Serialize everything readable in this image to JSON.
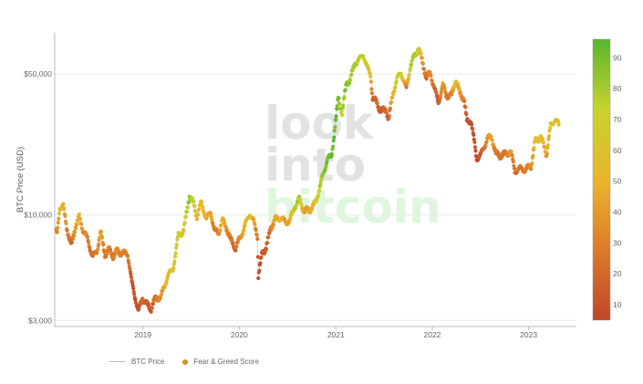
{
  "chart_data": {
    "type": "scatter",
    "ylabel": "BTC Price (USD)",
    "yscale": "log",
    "ylim": [
      2800,
      80000
    ],
    "xlim": [
      "2018-02-01",
      "2023-07-01"
    ],
    "y_ticks": [
      {
        "value": 3000,
        "label": "$3,000"
      },
      {
        "value": 10000,
        "label": "$10,000"
      },
      {
        "value": 50000,
        "label": "$50,000"
      }
    ],
    "x_ticks": [
      {
        "value": "2019-01-01",
        "label": "2019"
      },
      {
        "value": "2020-01-01",
        "label": "2020"
      },
      {
        "value": "2021-01-01",
        "label": "2021"
      },
      {
        "value": "2022-01-01",
        "label": "2022"
      },
      {
        "value": "2023-01-01",
        "label": "2023"
      }
    ],
    "colorbar": {
      "min": 5,
      "max": 96,
      "ticks": [
        10,
        20,
        30,
        40,
        50,
        60,
        70,
        80,
        90
      ],
      "colors": [
        "#c0462a",
        "#dc7a2a",
        "#e9b52b",
        "#c7d32d",
        "#58b52f"
      ]
    },
    "watermark": [
      "look",
      "into",
      "bitcoin"
    ],
    "legend": {
      "position": "bottom-left"
    },
    "series": [
      {
        "name": "BTC Price",
        "kind": "line",
        "color": "#bbbbbb"
      },
      {
        "name": "Fear & Greed Score",
        "kind": "markers",
        "color": "#d98d2b"
      }
    ],
    "points": [
      [
        "2018-02-01",
        8500,
        40
      ],
      [
        "2018-02-10",
        8000,
        30
      ],
      [
        "2018-02-20",
        11000,
        55
      ],
      [
        "2018-03-05",
        11000,
        50
      ],
      [
        "2018-03-20",
        8500,
        30
      ],
      [
        "2018-04-05",
        7000,
        20
      ],
      [
        "2018-04-20",
        8800,
        40
      ],
      [
        "2018-05-05",
        9700,
        50
      ],
      [
        "2018-05-20",
        8400,
        35
      ],
      [
        "2018-06-05",
        7600,
        30
      ],
      [
        "2018-06-25",
        6200,
        20
      ],
      [
        "2018-07-10",
        6600,
        30
      ],
      [
        "2018-07-25",
        8200,
        45
      ],
      [
        "2018-08-10",
        6400,
        25
      ],
      [
        "2018-08-25",
        6700,
        30
      ],
      [
        "2018-09-10",
        6300,
        25
      ],
      [
        "2018-09-25",
        6600,
        35
      ],
      [
        "2018-10-10",
        6500,
        30
      ],
      [
        "2018-11-05",
        6400,
        30
      ],
      [
        "2018-11-20",
        4600,
        10
      ],
      [
        "2018-12-05",
        3800,
        10
      ],
      [
        "2018-12-15",
        3300,
        8
      ],
      [
        "2018-12-30",
        3900,
        20
      ],
      [
        "2019-01-15",
        3600,
        15
      ],
      [
        "2019-02-01",
        3450,
        12
      ],
      [
        "2019-02-20",
        3900,
        25
      ],
      [
        "2019-03-10",
        3900,
        35
      ],
      [
        "2019-04-05",
        5000,
        55
      ],
      [
        "2019-04-25",
        5400,
        60
      ],
      [
        "2019-05-15",
        7900,
        70
      ],
      [
        "2019-06-05",
        8400,
        62
      ],
      [
        "2019-06-26",
        12500,
        85
      ],
      [
        "2019-07-10",
        11500,
        75
      ],
      [
        "2019-07-25",
        9900,
        50
      ],
      [
        "2019-08-10",
        11500,
        60
      ],
      [
        "2019-08-30",
        9600,
        45
      ],
      [
        "2019-09-15",
        10300,
        45
      ],
      [
        "2019-09-30",
        8300,
        25
      ],
      [
        "2019-10-15",
        8200,
        30
      ],
      [
        "2019-10-28",
        9400,
        55
      ],
      [
        "2019-11-15",
        8600,
        35
      ],
      [
        "2019-12-01",
        7400,
        25
      ],
      [
        "2019-12-18",
        6900,
        20
      ],
      [
        "2020-01-05",
        7700,
        35
      ],
      [
        "2020-01-20",
        8700,
        50
      ],
      [
        "2020-02-10",
        10200,
        62
      ],
      [
        "2020-02-25",
        9200,
        45
      ],
      [
        "2020-03-10",
        7900,
        25
      ],
      [
        "2020-03-13",
        5000,
        10
      ],
      [
        "2020-03-28",
        6500,
        12
      ],
      [
        "2020-04-12",
        6900,
        15
      ],
      [
        "2020-04-30",
        8700,
        25
      ],
      [
        "2020-05-15",
        9500,
        45
      ],
      [
        "2020-06-05",
        9700,
        50
      ],
      [
        "2020-06-25",
        9200,
        40
      ],
      [
        "2020-07-10",
        9300,
        45
      ],
      [
        "2020-07-28",
        11000,
        75
      ],
      [
        "2020-08-15",
        11900,
        80
      ],
      [
        "2020-09-05",
        10400,
        40
      ],
      [
        "2020-09-25",
        10700,
        45
      ],
      [
        "2020-10-15",
        11400,
        60
      ],
      [
        "2020-10-30",
        13500,
        75
      ],
      [
        "2020-11-15",
        16000,
        85
      ],
      [
        "2020-11-30",
        19000,
        90
      ],
      [
        "2020-12-15",
        19500,
        92
      ],
      [
        "2020-12-31",
        29000,
        93
      ],
      [
        "2021-01-10",
        38000,
        90
      ],
      [
        "2021-01-25",
        32000,
        75
      ],
      [
        "2021-02-10",
        45000,
        90
      ],
      [
        "2021-02-25",
        47000,
        80
      ],
      [
        "2021-03-15",
        57000,
        80
      ],
      [
        "2021-04-01",
        59000,
        75
      ],
      [
        "2021-04-14",
        63000,
        75
      ],
      [
        "2021-04-28",
        54000,
        60
      ],
      [
        "2021-05-12",
        50000,
        55
      ],
      [
        "2021-05-20",
        38000,
        15
      ],
      [
        "2021-06-05",
        36000,
        20
      ],
      [
        "2021-06-22",
        32500,
        12
      ],
      [
        "2021-07-10",
        33500,
        22
      ],
      [
        "2021-07-20",
        29800,
        15
      ],
      [
        "2021-08-05",
        40000,
        55
      ],
      [
        "2021-08-20",
        47000,
        70
      ],
      [
        "2021-09-05",
        51000,
        75
      ],
      [
        "2021-09-25",
        42000,
        25
      ],
      [
        "2021-10-10",
        55000,
        78
      ],
      [
        "2021-10-25",
        61000,
        80
      ],
      [
        "2021-11-10",
        67500,
        75
      ],
      [
        "2021-11-25",
        57000,
        35
      ],
      [
        "2021-12-10",
        48000,
        20
      ],
      [
        "2021-12-25",
        50500,
        35
      ],
      [
        "2022-01-10",
        42000,
        20
      ],
      [
        "2022-01-24",
        36000,
        12
      ],
      [
        "2022-02-10",
        44000,
        45
      ],
      [
        "2022-02-25",
        39000,
        25
      ],
      [
        "2022-03-15",
        39000,
        30
      ],
      [
        "2022-03-30",
        47000,
        60
      ],
      [
        "2022-04-15",
        40000,
        40
      ],
      [
        "2022-05-01",
        38000,
        30
      ],
      [
        "2022-05-12",
        29000,
        10
      ],
      [
        "2022-05-28",
        29500,
        10
      ],
      [
        "2022-06-18",
        19000,
        8
      ],
      [
        "2022-07-05",
        20000,
        12
      ],
      [
        "2022-07-28",
        23800,
        35
      ],
      [
        "2022-08-14",
        24400,
        45
      ],
      [
        "2022-08-30",
        20000,
        25
      ],
      [
        "2022-09-15",
        19800,
        25
      ],
      [
        "2022-10-05",
        20000,
        25
      ],
      [
        "2022-10-25",
        20700,
        40
      ],
      [
        "2022-11-10",
        16500,
        20
      ],
      [
        "2022-11-30",
        17000,
        25
      ],
      [
        "2022-12-20",
        16800,
        28
      ],
      [
        "2023-01-10",
        17500,
        35
      ],
      [
        "2023-01-25",
        23000,
        55
      ],
      [
        "2023-02-15",
        24500,
        60
      ],
      [
        "2023-03-10",
        20000,
        40
      ],
      [
        "2023-03-25",
        27500,
        60
      ],
      [
        "2023-04-12",
        30000,
        65
      ],
      [
        "2023-04-25",
        28000,
        55
      ]
    ]
  }
}
